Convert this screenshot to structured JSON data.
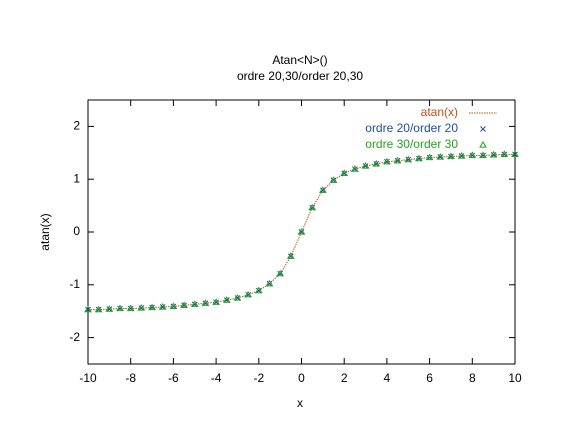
{
  "chart_data": {
    "type": "line",
    "title": "Atan<N>()",
    "subtitle": "ordre 20,30/order 20,30",
    "x_label": "x",
    "y_label": "atan(x)",
    "x": [
      -10,
      -9.5,
      -9,
      -8.5,
      -8,
      -7.5,
      -7,
      -6.5,
      -6,
      -5.5,
      -5,
      -4.5,
      -4,
      -3.5,
      -3,
      -2.5,
      -2,
      -1.5,
      -1,
      -0.5,
      0,
      0.5,
      1,
      1.5,
      2,
      2.5,
      3,
      3.5,
      4,
      4.5,
      5,
      5.5,
      6,
      6.5,
      7,
      7.5,
      8,
      8.5,
      9,
      9.5,
      10
    ],
    "series": [
      {
        "name": "atan(x)",
        "color": "#c0501a",
        "marker": "line",
        "values": [
          -1.47,
          -1.47,
          -1.46,
          -1.45,
          -1.45,
          -1.44,
          -1.43,
          -1.42,
          -1.41,
          -1.39,
          -1.37,
          -1.35,
          -1.33,
          -1.29,
          -1.25,
          -1.19,
          -1.11,
          -0.98,
          -0.79,
          -0.46,
          0,
          0.46,
          0.79,
          0.98,
          1.11,
          1.19,
          1.25,
          1.29,
          1.33,
          1.35,
          1.37,
          1.39,
          1.41,
          1.42,
          1.43,
          1.44,
          1.45,
          1.45,
          1.46,
          1.47,
          1.47
        ]
      },
      {
        "name": "ordre 20/order 20",
        "color": "#1f4e9a",
        "marker": "cross",
        "values": [
          -1.47,
          -1.47,
          -1.46,
          -1.45,
          -1.45,
          -1.44,
          -1.43,
          -1.42,
          -1.41,
          -1.39,
          -1.37,
          -1.35,
          -1.33,
          -1.29,
          -1.25,
          -1.19,
          -1.11,
          -0.98,
          -0.79,
          -0.46,
          0,
          0.46,
          0.79,
          0.98,
          1.11,
          1.19,
          1.25,
          1.29,
          1.33,
          1.35,
          1.37,
          1.39,
          1.41,
          1.42,
          1.43,
          1.44,
          1.45,
          1.45,
          1.46,
          1.47,
          1.47
        ]
      },
      {
        "name": "ordre 30/order 30",
        "color": "#22a322",
        "marker": "triangle",
        "values": [
          -1.47,
          -1.47,
          -1.46,
          -1.45,
          -1.45,
          -1.44,
          -1.43,
          -1.42,
          -1.41,
          -1.39,
          -1.37,
          -1.35,
          -1.33,
          -1.29,
          -1.25,
          -1.19,
          -1.11,
          -0.98,
          -0.79,
          -0.46,
          0,
          0.46,
          0.79,
          0.98,
          1.11,
          1.19,
          1.25,
          1.29,
          1.33,
          1.35,
          1.37,
          1.39,
          1.41,
          1.42,
          1.43,
          1.44,
          1.45,
          1.45,
          1.46,
          1.47,
          1.47
        ]
      }
    ],
    "xlim": [
      -10,
      10
    ],
    "xticks": [
      -10,
      -8,
      -6,
      -4,
      -2,
      0,
      2,
      4,
      6,
      8,
      10
    ],
    "ylim": [
      -2.5,
      2.5
    ],
    "yticks": [
      -2,
      -1,
      0,
      1,
      2
    ],
    "grid": false,
    "legend": "top-right"
  }
}
